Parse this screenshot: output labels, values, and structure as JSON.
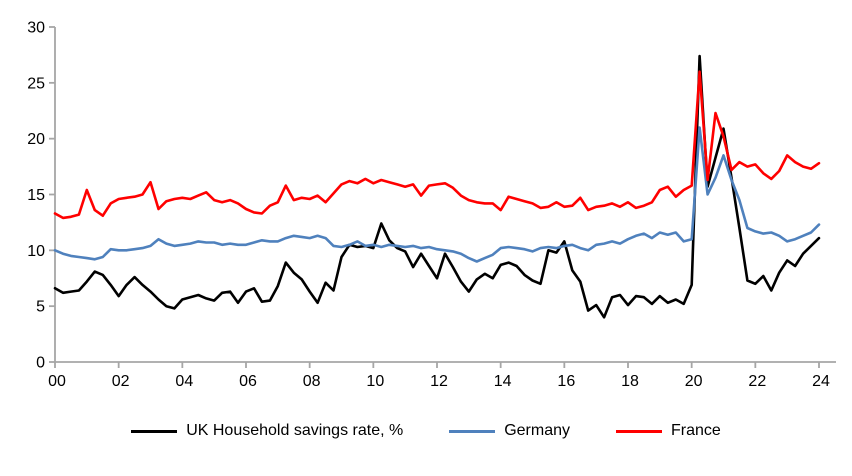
{
  "chart_data": {
    "type": "line",
    "title": "",
    "xlabel": "",
    "ylabel": "",
    "ylim": [
      0,
      30
    ],
    "y_ticks": [
      0,
      5,
      10,
      15,
      20,
      25,
      30
    ],
    "x_tick_labels": [
      "00",
      "02",
      "04",
      "06",
      "08",
      "10",
      "12",
      "14",
      "16",
      "18",
      "20",
      "22",
      "24"
    ],
    "x_start": 2000,
    "x_step": 0.25,
    "grid": false,
    "legend_position": "bottom",
    "axis_color": "#a6a6a6",
    "series": [
      {
        "name": "UK Household savings rate, %",
        "color": "#000000",
        "values": [
          6.6,
          6.2,
          6.3,
          6.4,
          7.2,
          8.1,
          7.8,
          6.9,
          5.9,
          6.9,
          7.6,
          6.9,
          6.3,
          5.6,
          5.0,
          4.8,
          5.6,
          5.8,
          6.0,
          5.7,
          5.5,
          6.2,
          6.3,
          5.3,
          6.3,
          6.6,
          5.4,
          5.5,
          6.8,
          8.9,
          8.0,
          7.4,
          6.3,
          5.3,
          7.1,
          6.4,
          9.4,
          10.5,
          10.3,
          10.4,
          10.2,
          12.4,
          10.9,
          10.2,
          9.9,
          8.5,
          9.7,
          8.6,
          7.5,
          9.7,
          8.5,
          7.2,
          6.3,
          7.4,
          7.9,
          7.5,
          8.7,
          8.9,
          8.6,
          7.8,
          7.3,
          7.0,
          10.0,
          9.8,
          10.8,
          8.2,
          7.2,
          4.6,
          5.1,
          4.0,
          5.8,
          6.0,
          5.1,
          5.9,
          5.8,
          5.2,
          5.9,
          5.3,
          5.6,
          5.2,
          6.9,
          27.4,
          15.7,
          18.3,
          20.9,
          16.5,
          12.0,
          7.3,
          7.0,
          7.7,
          6.4,
          8.0,
          9.1,
          8.6,
          9.7,
          10.4,
          11.1
        ]
      },
      {
        "name": "Germany",
        "color": "#4f81bd",
        "values": [
          10.0,
          9.7,
          9.5,
          9.4,
          9.3,
          9.2,
          9.4,
          10.1,
          10.0,
          10.0,
          10.1,
          10.2,
          10.4,
          11.0,
          10.6,
          10.4,
          10.5,
          10.6,
          10.8,
          10.7,
          10.7,
          10.5,
          10.6,
          10.5,
          10.5,
          10.7,
          10.9,
          10.8,
          10.8,
          11.1,
          11.3,
          11.2,
          11.1,
          11.3,
          11.1,
          10.4,
          10.3,
          10.5,
          10.8,
          10.4,
          10.5,
          10.3,
          10.5,
          10.4,
          10.3,
          10.4,
          10.2,
          10.3,
          10.1,
          10.0,
          9.9,
          9.7,
          9.3,
          9.0,
          9.3,
          9.6,
          10.2,
          10.3,
          10.2,
          10.1,
          9.9,
          10.2,
          10.3,
          10.2,
          10.4,
          10.5,
          10.2,
          10.0,
          10.5,
          10.6,
          10.8,
          10.6,
          11.0,
          11.3,
          11.5,
          11.1,
          11.6,
          11.4,
          11.6,
          10.8,
          11.0,
          21.0,
          15.0,
          16.5,
          18.5,
          16.3,
          14.5,
          12.0,
          11.7,
          11.5,
          11.6,
          11.3,
          10.8,
          11.0,
          11.3,
          11.6,
          12.3
        ]
      },
      {
        "name": "France",
        "color": "#ff0000",
        "values": [
          13.3,
          12.9,
          13.0,
          13.2,
          15.4,
          13.6,
          13.1,
          14.2,
          14.6,
          14.7,
          14.8,
          15.0,
          16.1,
          13.7,
          14.4,
          14.6,
          14.7,
          14.6,
          14.9,
          15.2,
          14.5,
          14.3,
          14.5,
          14.2,
          13.7,
          13.4,
          13.3,
          14.0,
          14.3,
          15.8,
          14.5,
          14.7,
          14.6,
          14.9,
          14.3,
          15.1,
          15.9,
          16.2,
          16.0,
          16.4,
          16.0,
          16.3,
          16.1,
          15.9,
          15.7,
          15.9,
          14.9,
          15.8,
          15.9,
          16.0,
          15.6,
          14.9,
          14.5,
          14.3,
          14.2,
          14.2,
          13.6,
          14.8,
          14.6,
          14.4,
          14.2,
          13.8,
          13.9,
          14.3,
          13.9,
          14.0,
          14.7,
          13.6,
          13.9,
          14.0,
          14.2,
          13.9,
          14.3,
          13.8,
          14.0,
          14.3,
          15.4,
          15.7,
          14.8,
          15.4,
          15.8,
          26.0,
          16.3,
          22.3,
          20.2,
          17.2,
          17.9,
          17.5,
          17.7,
          16.9,
          16.4,
          17.1,
          18.5,
          17.9,
          17.5,
          17.3,
          17.8
        ]
      }
    ]
  }
}
